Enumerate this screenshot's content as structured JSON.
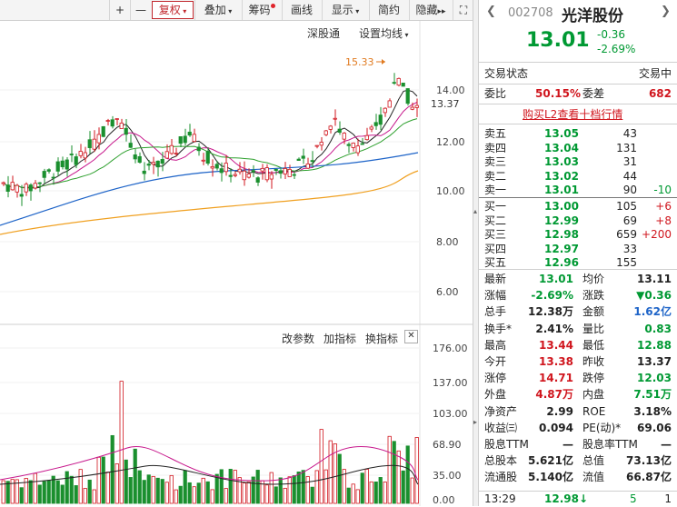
{
  "toolbar": {
    "plus": "+",
    "minus": "—",
    "fuquan": "复权",
    "diejia": "叠加",
    "chouma": "筹码",
    "huaxian": "画线",
    "xianshi": "显示",
    "jianyue": "简约",
    "yincang": "隐藏"
  },
  "chart": {
    "shengutong": "深股通",
    "set_ma": "设置均线",
    "peak_label": "15.33",
    "y_labels": [
      "14.00",
      "13.37",
      "12.00",
      "10.00",
      "8.00",
      "6.00"
    ],
    "current_price": "13.37",
    "indicator_links": {
      "change": "改参数",
      "add": "加指标",
      "swap": "换指标"
    },
    "vol_labels": [
      "176.00",
      "137.00",
      "103.00",
      "68.90",
      "35.00",
      "0.00"
    ],
    "colors": {
      "up": "#d0161e",
      "down": "#1a8f2e",
      "ma5": "#222222",
      "ma10": "#c7188c",
      "ma20": "#2ea02e",
      "ma60": "#1e64c8",
      "ma120": "#f0a020"
    }
  },
  "stock": {
    "code": "002708",
    "name": "光洋股份",
    "price": "13.01",
    "change": "-0.36",
    "pct": "-2.69%"
  },
  "status": {
    "label": "交易状态",
    "value": "交易中"
  },
  "weibi": {
    "label": "委比",
    "value": "50.15%",
    "wc_label": "委差",
    "wc_value": "682"
  },
  "l2_link": "购买L2查看十档行情",
  "sells": [
    {
      "l": "卖五",
      "p": "13.05",
      "v": "43",
      "c": ""
    },
    {
      "l": "卖四",
      "p": "13.04",
      "v": "131",
      "c": ""
    },
    {
      "l": "卖三",
      "p": "13.03",
      "v": "31",
      "c": ""
    },
    {
      "l": "卖二",
      "p": "13.02",
      "v": "44",
      "c": ""
    },
    {
      "l": "卖一",
      "p": "13.01",
      "v": "90",
      "c": "-10"
    }
  ],
  "buys": [
    {
      "l": "买一",
      "p": "13.00",
      "v": "105",
      "c": "+6"
    },
    {
      "l": "买二",
      "p": "12.99",
      "v": "69",
      "c": "+8"
    },
    {
      "l": "买三",
      "p": "12.98",
      "v": "659",
      "c": "+200"
    },
    {
      "l": "买四",
      "p": "12.97",
      "v": "33",
      "c": ""
    },
    {
      "l": "买五",
      "p": "12.96",
      "v": "155",
      "c": ""
    }
  ],
  "stats": [
    [
      "最新",
      "13.01",
      "均价",
      "13.11"
    ],
    [
      "涨幅",
      "-2.69%",
      "涨跌",
      "▼0.36"
    ],
    [
      "总手",
      "12.38万",
      "金额",
      "1.62亿"
    ],
    [
      "换手*",
      "2.41%",
      "量比",
      "0.83"
    ],
    [
      "最高",
      "13.44",
      "最低",
      "12.88"
    ],
    [
      "今开",
      "13.38",
      "昨收",
      "13.37"
    ],
    [
      "涨停",
      "14.71",
      "跌停",
      "12.03"
    ],
    [
      "外盘",
      "4.87万",
      "内盘",
      "7.51万"
    ],
    [
      "净资产",
      "2.99",
      "ROE",
      "3.18%"
    ],
    [
      "收益㈢",
      "0.094",
      "PE(动)*",
      "69.06"
    ],
    [
      "股息TTM",
      "—",
      "股息率TTM",
      "—"
    ],
    [
      "总股本",
      "5.621亿",
      "总值",
      "73.13亿"
    ],
    [
      "流通股",
      "5.140亿",
      "流值",
      "66.87亿"
    ]
  ],
  "tick": {
    "time": "13:29",
    "price": "12.98",
    "vol": "5",
    "n": "1"
  }
}
